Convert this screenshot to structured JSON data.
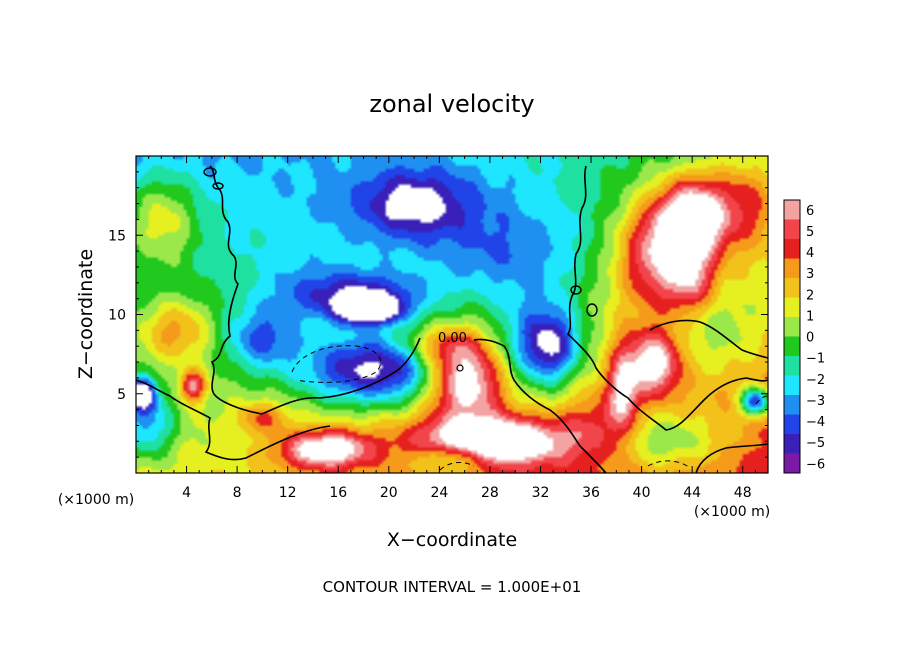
{
  "chart_data": {
    "type": "heatmap",
    "title": "zonal velocity",
    "xlabel": "X−coordinate",
    "ylabel": "Z−coordinate",
    "x_unit": "(×1000 m)",
    "z_unit": "(×1000 m)",
    "footer": "CONTOUR INTERVAL = 1.000E+01",
    "contour_label": "0.00",
    "xlim": [
      0,
      50
    ],
    "ylim": [
      0,
      20
    ],
    "x_ticks": [
      4,
      8,
      12,
      16,
      20,
      24,
      28,
      32,
      36,
      40,
      44,
      48
    ],
    "y_ticks": [
      5,
      10,
      15
    ],
    "colorbar": {
      "levels": [
        6,
        5,
        4,
        3,
        2,
        1,
        0,
        -1,
        -2,
        -3,
        -4,
        -5,
        -6
      ],
      "colors": [
        "#f4a3a3",
        "#f2454b",
        "#e61f1f",
        "#f59a1a",
        "#f2c21b",
        "#e6f020",
        "#9be84a",
        "#21c81e",
        "#1ee0a0",
        "#1ee6ff",
        "#1f8ff2",
        "#2044e8",
        "#3a1fb8",
        "#7a1aa6"
      ],
      "over_color": "#ffffff",
      "under_color": "#ffffff"
    },
    "blobs": [
      {
        "x": 25,
        "z": 16,
        "v": -2.5,
        "sx": 12,
        "sz": 4
      },
      {
        "x": 22,
        "z": 17,
        "v": -3.5,
        "sx": 4,
        "sz": 2
      },
      {
        "x": 30,
        "z": 13,
        "v": -2.5,
        "sx": 6,
        "sz": 3
      },
      {
        "x": 18,
        "z": 11,
        "v": -5.5,
        "sx": 5,
        "sz": 1.6
      },
      {
        "x": 10,
        "z": 8.5,
        "v": -4,
        "sx": 3,
        "sz": 2
      },
      {
        "x": 13,
        "z": 12,
        "v": -1.5,
        "sx": 4,
        "sz": 2
      },
      {
        "x": 19,
        "z": 6.5,
        "v": -7.5,
        "sx": 6,
        "sz": 2.2
      },
      {
        "x": 18.5,
        "z": 10.3,
        "v": -7,
        "sx": 2.2,
        "sz": 0.8
      },
      {
        "x": 32,
        "z": 8,
        "v": -5.5,
        "sx": 3.5,
        "sz": 3
      },
      {
        "x": 33,
        "z": 8,
        "v": -3,
        "sx": 2,
        "sz": 2
      },
      {
        "x": 2,
        "z": 16,
        "v": 4,
        "sx": 3,
        "sz": 3
      },
      {
        "x": 3,
        "z": 9,
        "v": 4,
        "sx": 3,
        "sz": 2
      },
      {
        "x": 4.5,
        "z": 5.5,
        "v": 6,
        "sx": 1,
        "sz": 1
      },
      {
        "x": 1,
        "z": 3,
        "v": -4,
        "sx": 2,
        "sz": 2
      },
      {
        "x": 0.5,
        "z": 5,
        "v": -8,
        "sx": 1,
        "sz": 1
      },
      {
        "x": 41,
        "z": 14,
        "v": 6,
        "sx": 3,
        "sz": 3.5
      },
      {
        "x": 44,
        "z": 16,
        "v": 9,
        "sx": 2.5,
        "sz": 2.5
      },
      {
        "x": 44,
        "z": 12,
        "v": 4,
        "sx": 2,
        "sz": 2
      },
      {
        "x": 41,
        "z": 7,
        "v": 6,
        "sx": 2,
        "sz": 2
      },
      {
        "x": 48,
        "z": 17,
        "v": 4,
        "sx": 3,
        "sz": 3
      },
      {
        "x": 46,
        "z": 9,
        "v": -2,
        "sx": 4,
        "sz": 3
      },
      {
        "x": 38.5,
        "z": 5,
        "v": 5,
        "sx": 1.2,
        "sz": 3
      },
      {
        "x": 42,
        "z": 2,
        "v": -3.5,
        "sx": 5,
        "sz": 2
      },
      {
        "x": 49,
        "z": 4.5,
        "v": -8,
        "sx": 1.2,
        "sz": 0.9
      },
      {
        "x": 26,
        "z": 6,
        "v": 8,
        "sx": 3,
        "sz": 2.5
      },
      {
        "x": 24,
        "z": 8,
        "v": 3,
        "sx": 3,
        "sz": 1.2
      },
      {
        "x": 28,
        "z": 2,
        "v": 8,
        "sx": 6,
        "sz": 1.5
      },
      {
        "x": 15,
        "z": 1.5,
        "v": 7,
        "sx": 3.5,
        "sz": 1.2
      },
      {
        "x": 10,
        "z": 3.5,
        "v": 3,
        "sx": 2,
        "sz": 1
      },
      {
        "x": 25,
        "z": 1,
        "v": -4,
        "sx": 3,
        "sz": 1
      },
      {
        "x": 36,
        "z": 3,
        "v": 2,
        "sx": 2,
        "sz": 2
      }
    ]
  }
}
